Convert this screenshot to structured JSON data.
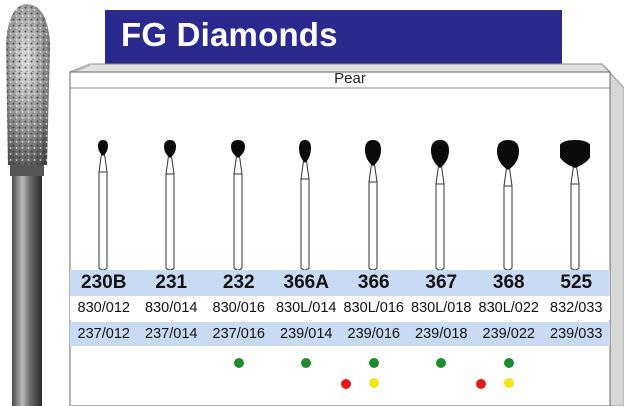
{
  "title": "FG Diamonds",
  "shape_label": "Pear",
  "colors": {
    "banner": "#2a2a8e",
    "row_band": "#c9dbf4",
    "box_side": "#d7d7d7",
    "dot_green": "#1f8a2e",
    "dot_red": "#e21b1b",
    "dot_yellow": "#f2e51b"
  },
  "burs": [
    {
      "name": "230B",
      "iso1": "830/012",
      "iso2": "237/012",
      "dots": []
    },
    {
      "name": "231",
      "iso1": "830/014",
      "iso2": "237/014",
      "dots": []
    },
    {
      "name": "232",
      "iso1": "830/016",
      "iso2": "237/016",
      "dots": [
        "green"
      ]
    },
    {
      "name": "366A",
      "iso1": "830L/014",
      "iso2": "239/014",
      "dots": [
        "green"
      ]
    },
    {
      "name": "366",
      "iso1": "830L/016",
      "iso2": "239/016",
      "dots": [
        "red",
        "green",
        "yellow"
      ]
    },
    {
      "name": "367",
      "iso1": "830L/018",
      "iso2": "239/018",
      "dots": [
        "green"
      ]
    },
    {
      "name": "368",
      "iso1": "830L/022",
      "iso2": "239/022",
      "dots": [
        "red",
        "green",
        "yellow"
      ]
    },
    {
      "name": "525",
      "iso1": "832/033",
      "iso2": "239/033",
      "dots": []
    }
  ]
}
